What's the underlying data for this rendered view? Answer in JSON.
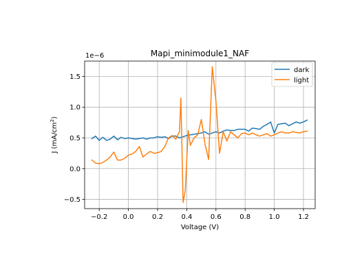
{
  "chart_data": {
    "type": "line",
    "title": "Mapi_minimodule1_NAF",
    "xlabel": "Voltage (V)",
    "ylabel_main": "J (mA/cm",
    "ylabel_sup": "2",
    "ylabel_end": ")",
    "offset_text": "1e−6",
    "xlim": [
      -0.3,
      1.28
    ],
    "ylim": [
      -0.65,
      1.75
    ],
    "xticks": [
      -0.2,
      0.0,
      0.2,
      0.4,
      0.6,
      0.8,
      1.0,
      1.2
    ],
    "xtick_labels": [
      "−0.2",
      "0.0",
      "0.2",
      "0.4",
      "0.6",
      "0.8",
      "1.0",
      "1.2"
    ],
    "yticks": [
      -0.5,
      0.0,
      0.5,
      1.0,
      1.5
    ],
    "ytick_labels": [
      "−0.5",
      "0.0",
      "0.5",
      "1.0",
      "1.5"
    ],
    "grid": true,
    "legend_position": "upper-right",
    "series": [
      {
        "name": "dark",
        "color": "#1f77b4",
        "x": [
          -0.25,
          -0.225,
          -0.2,
          -0.175,
          -0.15,
          -0.125,
          -0.1,
          -0.075,
          -0.05,
          -0.025,
          0.0,
          0.025,
          0.05,
          0.075,
          0.1,
          0.125,
          0.15,
          0.175,
          0.2,
          0.225,
          0.25,
          0.275,
          0.3,
          0.325,
          0.35,
          0.375,
          0.4,
          0.425,
          0.45,
          0.475,
          0.5,
          0.525,
          0.55,
          0.575,
          0.6,
          0.625,
          0.65,
          0.675,
          0.7,
          0.725,
          0.75,
          0.775,
          0.8,
          0.825,
          0.85,
          0.875,
          0.9,
          0.925,
          0.95,
          0.975,
          1.0,
          1.025,
          1.05,
          1.075,
          1.1,
          1.125,
          1.15,
          1.175,
          1.2,
          1.225
        ],
        "y": [
          0.49,
          0.53,
          0.46,
          0.51,
          0.46,
          0.48,
          0.53,
          0.47,
          0.51,
          0.49,
          0.5,
          0.49,
          0.48,
          0.49,
          0.5,
          0.48,
          0.5,
          0.5,
          0.52,
          0.51,
          0.52,
          0.49,
          0.53,
          0.53,
          0.5,
          0.52,
          0.54,
          0.55,
          0.56,
          0.57,
          0.58,
          0.6,
          0.56,
          0.58,
          0.6,
          0.58,
          0.61,
          0.63,
          0.62,
          0.62,
          0.64,
          0.64,
          0.64,
          0.61,
          0.66,
          0.65,
          0.64,
          0.69,
          0.72,
          0.76,
          0.58,
          0.72,
          0.73,
          0.74,
          0.7,
          0.73,
          0.76,
          0.74,
          0.76,
          0.79
        ]
      },
      {
        "name": "light",
        "color": "#ff7f0e",
        "x": [
          -0.25,
          -0.225,
          -0.2,
          -0.175,
          -0.15,
          -0.125,
          -0.1,
          -0.075,
          -0.05,
          -0.025,
          0.0,
          0.025,
          0.05,
          0.075,
          0.1,
          0.125,
          0.15,
          0.175,
          0.2,
          0.225,
          0.25,
          0.275,
          0.3,
          0.325,
          0.35,
          0.36,
          0.375,
          0.39,
          0.41,
          0.425,
          0.45,
          0.475,
          0.5,
          0.525,
          0.55,
          0.575,
          0.6,
          0.625,
          0.65,
          0.675,
          0.7,
          0.725,
          0.75,
          0.775,
          0.8,
          0.825,
          0.85,
          0.875,
          0.9,
          0.925,
          0.95,
          0.975,
          1.0,
          1.025,
          1.05,
          1.075,
          1.1,
          1.125,
          1.15,
          1.175,
          1.2,
          1.225
        ],
        "y": [
          0.14,
          0.09,
          0.08,
          0.1,
          0.14,
          0.19,
          0.27,
          0.14,
          0.14,
          0.17,
          0.22,
          0.24,
          0.28,
          0.36,
          0.19,
          0.24,
          0.28,
          0.25,
          0.26,
          0.28,
          0.36,
          0.5,
          0.54,
          0.48,
          0.6,
          1.15,
          -0.55,
          -0.35,
          0.62,
          0.38,
          0.5,
          0.55,
          0.8,
          0.4,
          0.15,
          1.66,
          1.1,
          0.25,
          0.6,
          0.45,
          0.6,
          0.55,
          0.5,
          0.57,
          0.58,
          0.55,
          0.58,
          0.55,
          0.53,
          0.55,
          0.57,
          0.53,
          0.55,
          0.58,
          0.6,
          0.58,
          0.58,
          0.6,
          0.59,
          0.58,
          0.6,
          0.61
        ]
      }
    ]
  }
}
